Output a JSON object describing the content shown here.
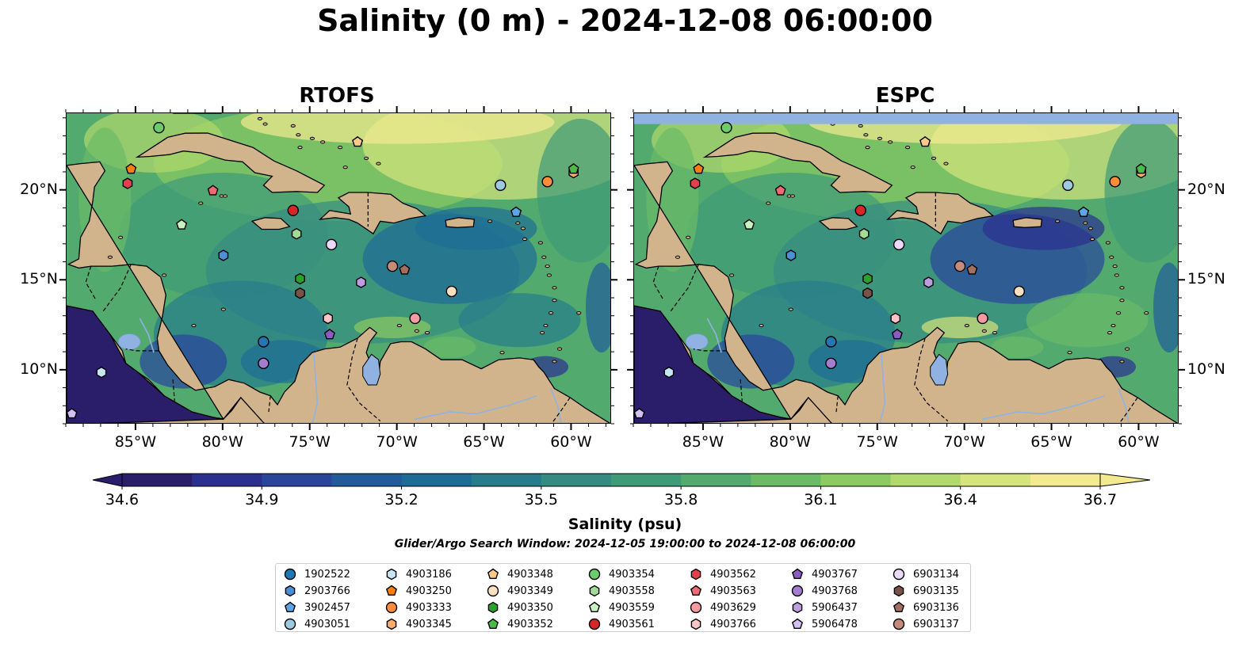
{
  "figure": {
    "title": "Salinity (0 m) - 2024-12-08 06:00:00",
    "colorbar_label": "Salinity (psu)",
    "search_window": "Glider/Argo Search Window: 2024-12-05 19:00:00 to 2024-12-08 06:00:00"
  },
  "panels": [
    {
      "title": "RTOFS"
    },
    {
      "title": "ESPC"
    }
  ],
  "axes": {
    "lon_ticks": [
      "85°W",
      "80°W",
      "75°W",
      "70°W",
      "65°W",
      "60°W"
    ],
    "lat_ticks": [
      "20°N",
      "15°N",
      "10°N"
    ]
  },
  "colorbar": {
    "min": 34.6,
    "max": 36.7,
    "ticks": [
      "34.6",
      "34.9",
      "35.2",
      "35.5",
      "35.8",
      "36.1",
      "36.4",
      "36.7"
    ],
    "extend": "both",
    "colors": [
      "#2a1e6b",
      "#2b2f8f",
      "#2a459c",
      "#225b9a",
      "#1e6c96",
      "#277c8c",
      "#358b82",
      "#3f9a78",
      "#52aa6e",
      "#6bbb66",
      "#8ccb61",
      "#b2d96b",
      "#d6e47c",
      "#f3ea90"
    ]
  },
  "map_colors": {
    "land": "#d2b48c",
    "lakes_rivers": "#8fb2e2",
    "coast": "#000000"
  },
  "legend": {
    "items": [
      {
        "id": "1902522",
        "marker": "circle",
        "color": "#1f77b4"
      },
      {
        "id": "2903766",
        "marker": "hexagon",
        "color": "#4a90d9"
      },
      {
        "id": "3902457",
        "marker": "pentagon",
        "color": "#5ca6e8"
      },
      {
        "id": "4903051",
        "marker": "circle",
        "color": "#9ecae1"
      },
      {
        "id": "4903186",
        "marker": "hexagon",
        "color": "#c6e6f5"
      },
      {
        "id": "4903250",
        "marker": "pentagon",
        "color": "#ff7f0e"
      },
      {
        "id": "4903333",
        "marker": "circle",
        "color": "#fd8d3c"
      },
      {
        "id": "4903345",
        "marker": "hexagon",
        "color": "#fdae6b"
      },
      {
        "id": "4903348",
        "marker": "pentagon",
        "color": "#fdc98a"
      },
      {
        "id": "4903349",
        "marker": "circle",
        "color": "#fde0c2"
      },
      {
        "id": "4903350",
        "marker": "hexagon",
        "color": "#2ca02c"
      },
      {
        "id": "4903352",
        "marker": "pentagon",
        "color": "#4cbb47"
      },
      {
        "id": "4903354",
        "marker": "circle",
        "color": "#6ccb6a"
      },
      {
        "id": "4903558",
        "marker": "hexagon",
        "color": "#a1dc97"
      },
      {
        "id": "4903559",
        "marker": "pentagon",
        "color": "#c8f2c0"
      },
      {
        "id": "4903561",
        "marker": "circle",
        "color": "#d62728"
      },
      {
        "id": "4903562",
        "marker": "hexagon",
        "color": "#e0414a"
      },
      {
        "id": "4903563",
        "marker": "pentagon",
        "color": "#ee6a72"
      },
      {
        "id": "4903629",
        "marker": "circle",
        "color": "#f49aa1"
      },
      {
        "id": "4903766",
        "marker": "hexagon",
        "color": "#fcc4c8"
      },
      {
        "id": "4903767",
        "marker": "pentagon",
        "color": "#8a5cc2"
      },
      {
        "id": "4903768",
        "marker": "circle",
        "color": "#a57dd0"
      },
      {
        "id": "5906437",
        "marker": "hexagon",
        "color": "#bc9de0"
      },
      {
        "id": "5906478",
        "marker": "pentagon",
        "color": "#d3bff0"
      },
      {
        "id": "6903134",
        "marker": "circle",
        "color": "#ead9f7"
      },
      {
        "id": "6903135",
        "marker": "hexagon",
        "color": "#7a5348"
      },
      {
        "id": "6903136",
        "marker": "pentagon",
        "color": "#a3705f"
      },
      {
        "id": "6903137",
        "marker": "circle",
        "color": "#c48b7c"
      }
    ]
  },
  "floats": [
    {
      "id": "1902522",
      "lon": -77.7,
      "lat": 11.6
    },
    {
      "id": "2903766",
      "lon": -80.0,
      "lat": 16.4
    },
    {
      "id": "3902457",
      "lon": -63.2,
      "lat": 18.8
    },
    {
      "id": "4903051",
      "lon": -64.1,
      "lat": 20.3
    },
    {
      "id": "4903186",
      "lon": -87.0,
      "lat": 9.9
    },
    {
      "id": "4903250",
      "lon": -85.3,
      "lat": 21.2
    },
    {
      "id": "4903333",
      "lon": -61.4,
      "lat": 20.5
    },
    {
      "id": "4903345",
      "lon": -59.9,
      "lat": 21.0
    },
    {
      "id": "4903348",
      "lon": -72.3,
      "lat": 22.7
    },
    {
      "id": "4903349",
      "lon": -66.9,
      "lat": 14.4
    },
    {
      "id": "4903350",
      "lon": -75.6,
      "lat": 15.1
    },
    {
      "id": "4903352",
      "lon": -59.9,
      "lat": 21.2
    },
    {
      "id": "4903354",
      "lon": -83.7,
      "lat": 23.5
    },
    {
      "id": "4903558",
      "lon": -75.8,
      "lat": 17.6
    },
    {
      "id": "4903559",
      "lon": -82.4,
      "lat": 18.1
    },
    {
      "id": "4903561",
      "lon": -76.0,
      "lat": 18.9
    },
    {
      "id": "4903562",
      "lon": -85.5,
      "lat": 20.4
    },
    {
      "id": "4903563",
      "lon": -80.6,
      "lat": 20.0
    },
    {
      "id": "4903629",
      "lon": -69.0,
      "lat": 12.9
    },
    {
      "id": "4903766",
      "lon": -74.0,
      "lat": 12.9
    },
    {
      "id": "4903767",
      "lon": -73.9,
      "lat": 12.0
    },
    {
      "id": "4903768",
      "lon": -77.7,
      "lat": 10.4
    },
    {
      "id": "5906437",
      "lon": -72.1,
      "lat": 14.9
    },
    {
      "id": "5906478",
      "lon": -88.7,
      "lat": 7.6
    },
    {
      "id": "6903134",
      "lon": -73.8,
      "lat": 17.0
    },
    {
      "id": "6903135",
      "lon": -75.6,
      "lat": 14.3
    },
    {
      "id": "6903136",
      "lon": -69.6,
      "lat": 15.6
    },
    {
      "id": "6903137",
      "lon": -70.3,
      "lat": 15.8
    }
  ]
}
